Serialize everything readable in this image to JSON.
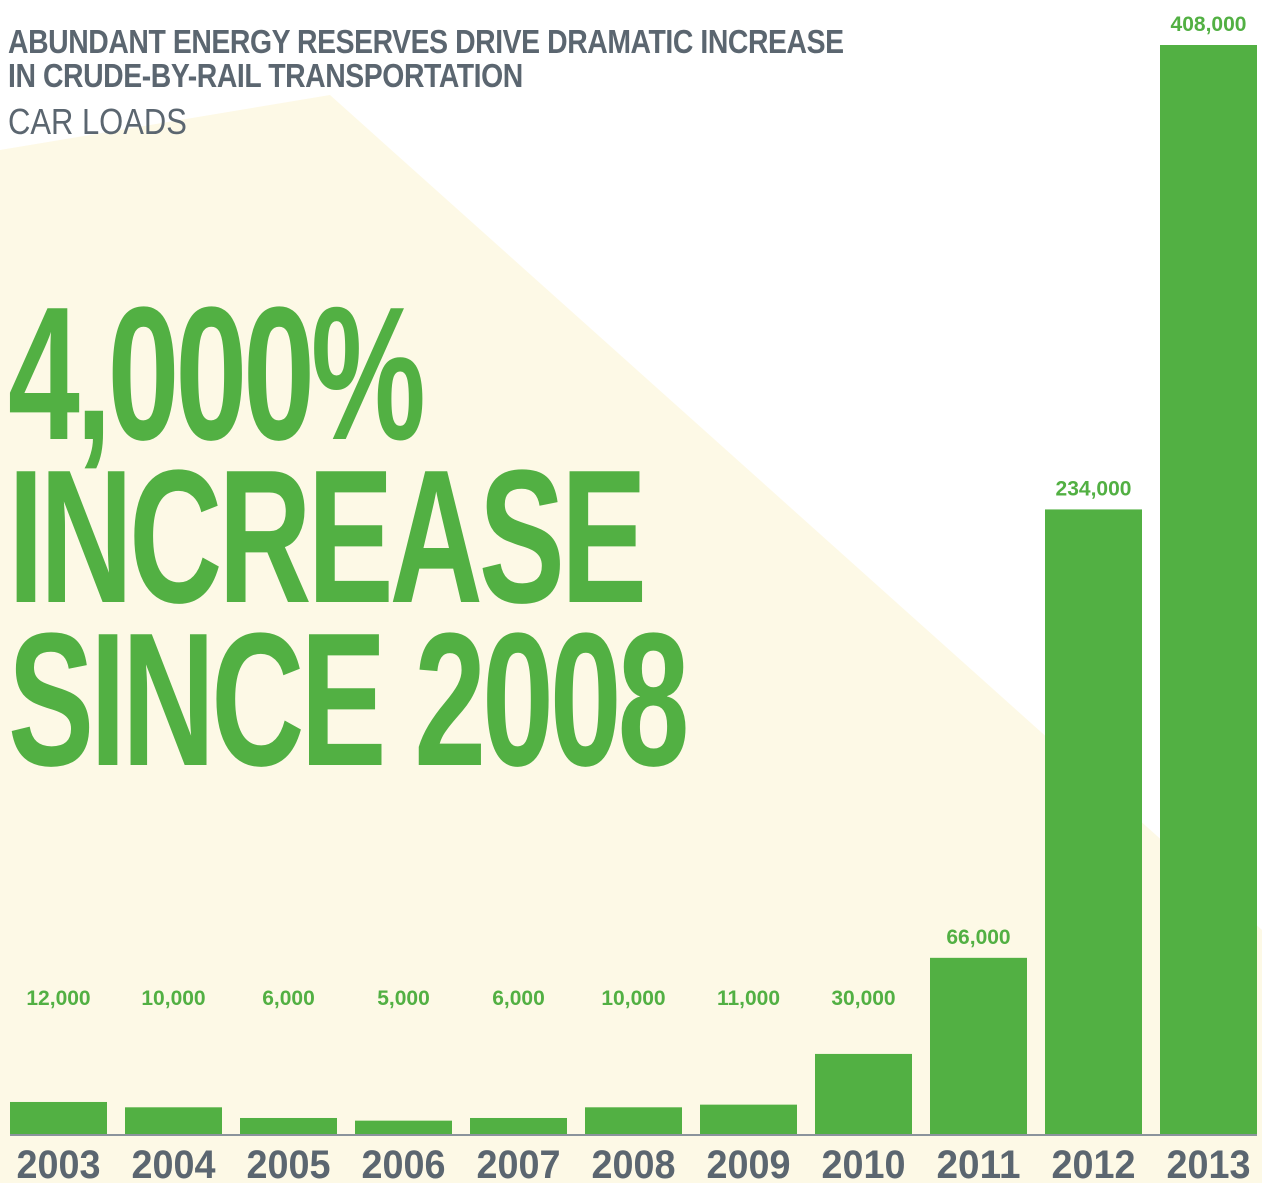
{
  "colors": {
    "bar": "#52b043",
    "value_label": "#52b043",
    "headline": "#52b043",
    "title": "#5b6670",
    "subtitle": "#5b6670",
    "year_label": "#5b6670",
    "baseline": "#8b949c",
    "background_shape": "#fdf9e6"
  },
  "headline": {
    "line1": "4,000%",
    "line2": "INCREASE",
    "line3": "SINCE 2008"
  },
  "chart_data": {
    "type": "bar",
    "title": "ABUNDANT ENERGY RESERVES DRIVE DRAMATIC INCREASE IN CRUDE-BY-RAIL TRANSPORTATION",
    "title_lines": [
      "ABUNDANT ENERGY RESERVES DRIVE DRAMATIC INCREASE",
      "IN CRUDE-BY-RAIL TRANSPORTATION"
    ],
    "subtitle": "CAR LOADS",
    "categories": [
      "2003",
      "2004",
      "2005",
      "2006",
      "2007",
      "2008",
      "2009",
      "2010",
      "2011",
      "2012",
      "2013"
    ],
    "values": [
      12000,
      10000,
      6000,
      5000,
      6000,
      10000,
      11000,
      30000,
      66000,
      234000,
      408000
    ],
    "value_labels": [
      "12,000",
      "10,000",
      "6,000",
      "5,000",
      "6,000",
      "10,000",
      "11,000",
      "30,000",
      "66,000",
      "234,000",
      "408,000"
    ],
    "ylim": [
      0,
      408000
    ],
    "grid": false,
    "legend": "none"
  }
}
